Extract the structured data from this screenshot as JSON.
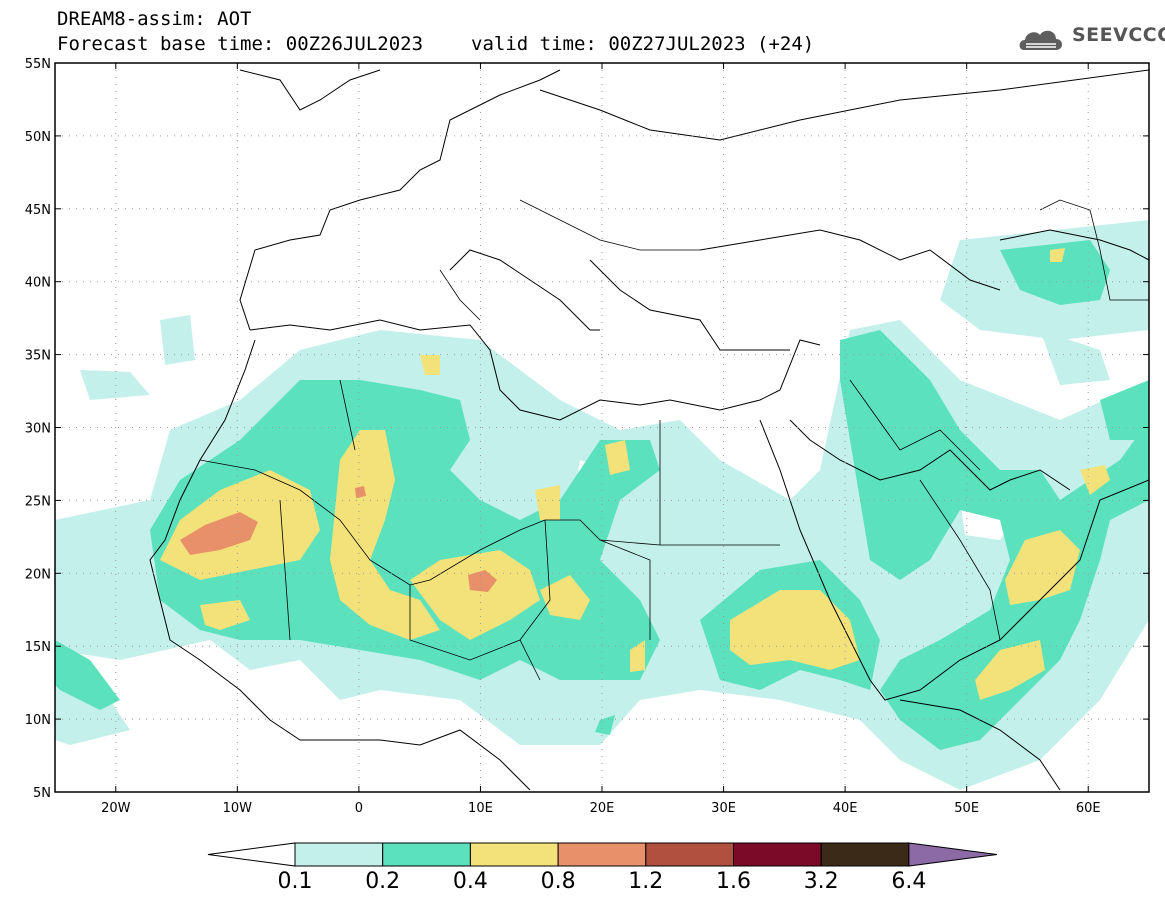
{
  "title": {
    "model": "DREAM8-assim: AOT",
    "base_time_label": "Forecast base time: 00Z26JUL2023",
    "valid_time_label": "valid time: 00Z27JUL2023 (+24)"
  },
  "logo": {
    "icon": "cloud-logo-icon",
    "text": "SEEVCCC"
  },
  "map": {
    "lat_labels": [
      "55N",
      "50N",
      "45N",
      "40N",
      "35N",
      "30N",
      "25N",
      "20N",
      "15N",
      "10N",
      "5N"
    ],
    "lon_labels": [
      "20W",
      "10W",
      "0",
      "10E",
      "20E",
      "30E",
      "40E",
      "50E",
      "60E"
    ],
    "lat_values": [
      55,
      50,
      45,
      40,
      35,
      30,
      25,
      20,
      15,
      10,
      5
    ],
    "lon_values": [
      -20,
      -10,
      0,
      10,
      20,
      30,
      40,
      50,
      60
    ],
    "extent": {
      "lon_min": -25,
      "lon_max": 65,
      "lat_min": 5,
      "lat_max": 55
    },
    "grid": true
  },
  "colorbar": {
    "levels": [
      "0.1",
      "0.2",
      "0.4",
      "0.8",
      "1.2",
      "1.6",
      "3.2",
      "6.4"
    ],
    "colors": [
      "#ffffff",
      "#c3f0ea",
      "#5ce1bd",
      "#f3e27a",
      "#e8906a",
      "#b0503f",
      "#7a0a26",
      "#3c2a18",
      "#8c6aa6"
    ]
  }
}
